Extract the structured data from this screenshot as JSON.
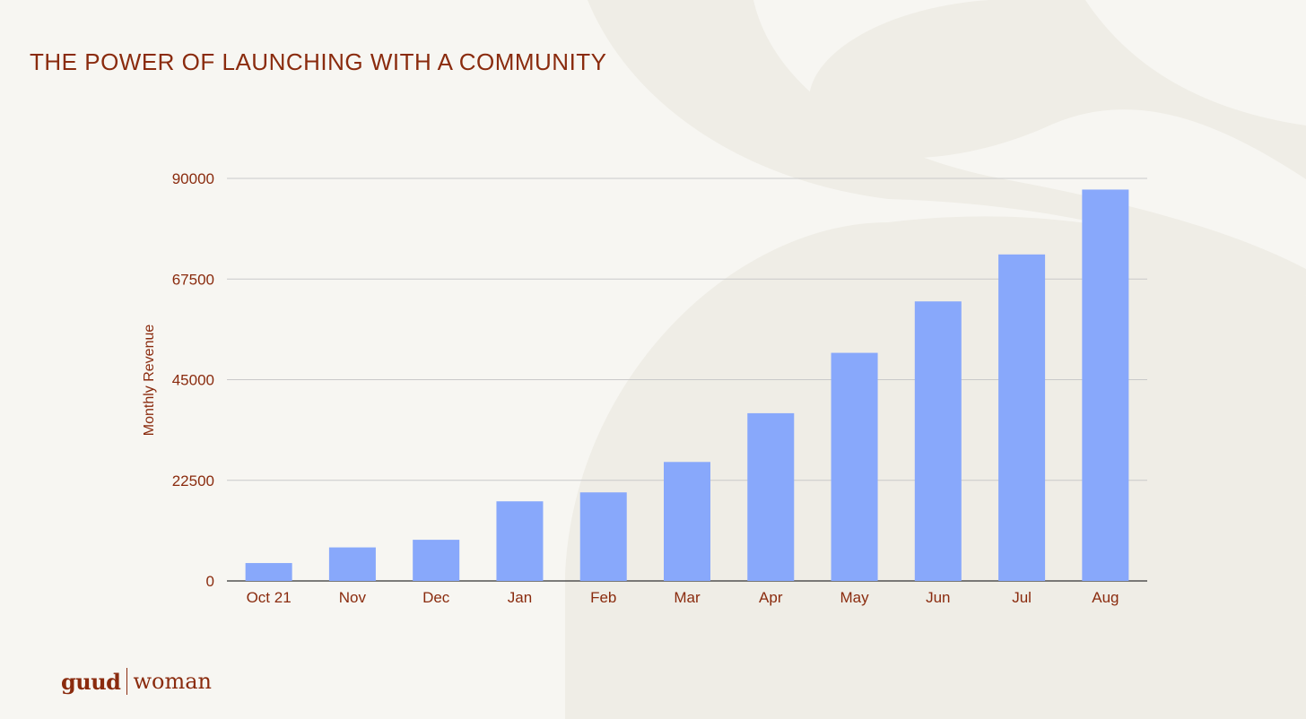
{
  "page": {
    "title": "THE POWER OF LAUNCHING WITH A COMMUNITY"
  },
  "logo": {
    "brand": "guud",
    "sub": "woman"
  },
  "colors": {
    "background": "#f7f6f2",
    "decor": "#efede6",
    "text": "#8a2b0e",
    "bar": "#88a8fb",
    "grid": "#c9c9c9",
    "axis": "#333333"
  },
  "chart_data": {
    "type": "bar",
    "title": "",
    "xlabel": "",
    "ylabel": "Monthly Revenue",
    "categories": [
      "Oct 21",
      "Nov",
      "Dec",
      "Jan",
      "Feb",
      "Mar",
      "Apr",
      "May",
      "Jun",
      "Jul",
      "Aug"
    ],
    "values": [
      4000,
      7500,
      9200,
      17800,
      19800,
      26600,
      37500,
      51000,
      62500,
      73000,
      87500
    ],
    "ylim": [
      0,
      90000
    ],
    "yticks": [
      0,
      22500,
      45000,
      67500,
      90000
    ],
    "grid": true,
    "legend": "none"
  }
}
